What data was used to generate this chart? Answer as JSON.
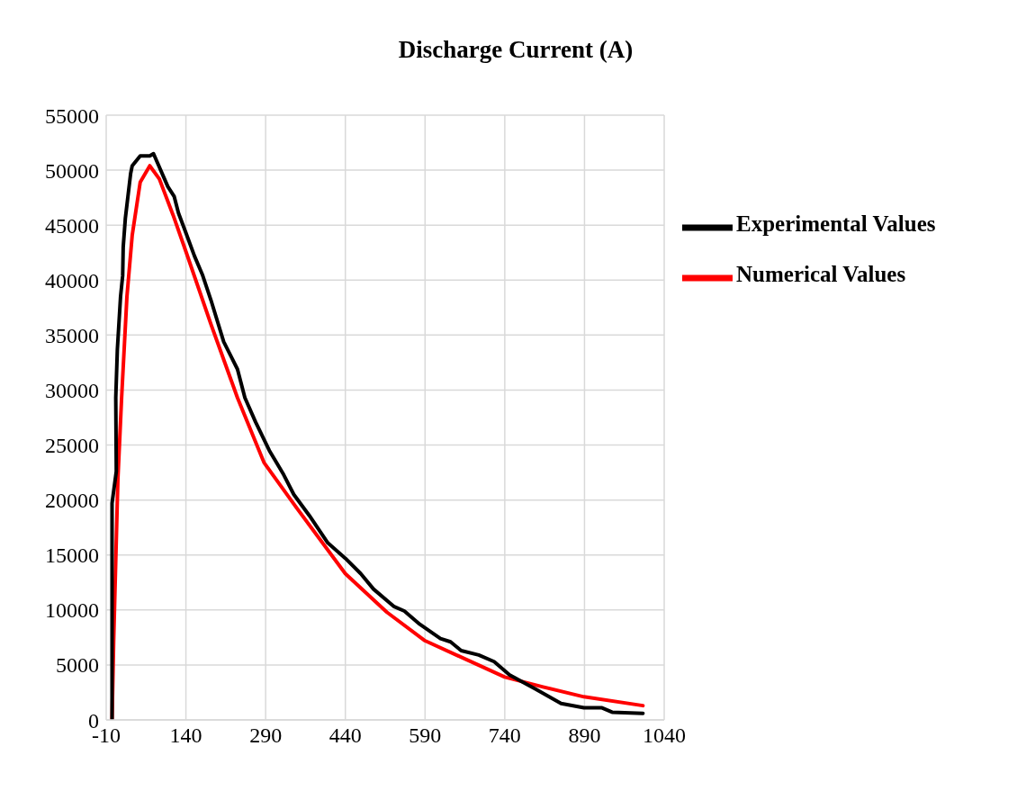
{
  "chart_data": {
    "type": "line",
    "title": "Discharge Current (A)",
    "xlim": [
      -10,
      1040
    ],
    "xticks": [
      -10,
      140,
      290,
      440,
      590,
      740,
      890,
      1040
    ],
    "ylim": [
      0,
      55000
    ],
    "yticks": [
      0,
      5000,
      10000,
      15000,
      20000,
      25000,
      30000,
      35000,
      40000,
      45000,
      50000,
      55000
    ],
    "grid": true,
    "legend": "top right",
    "marker": "none",
    "line_style": "solid",
    "series": [
      {
        "name": "Numerical Values",
        "color": "#ff0000",
        "x": [
          1,
          4,
          12,
          19,
          29,
          39,
          54,
          72,
          90,
          116,
          140,
          187,
          237,
          287,
          348,
          440,
          518,
          590,
          740,
          812,
          889,
          1000
        ],
        "values": [
          0,
          7100,
          21900,
          29300,
          38500,
          44100,
          48900,
          50400,
          49200,
          45900,
          42600,
          36000,
          29300,
          23400,
          19300,
          13300,
          9800,
          7200,
          3900,
          3000,
          2100,
          1300
        ]
      },
      {
        "name": "Experimental Values",
        "color": "#000000",
        "x": [
          1,
          1,
          9,
          8,
          11,
          17,
          21,
          22,
          26,
          36,
          39,
          54,
          72,
          79,
          106,
          118,
          126,
          140,
          156,
          171,
          187,
          211,
          237,
          251,
          271,
          297,
          324,
          343,
          372,
          407,
          440,
          469,
          493,
          532,
          551,
          580,
          619,
          638,
          658,
          691,
          720,
          749,
          798,
          846,
          889,
          923,
          942,
          1000
        ],
        "values": [
          100,
          19700,
          22600,
          29300,
          33700,
          38500,
          40400,
          43000,
          45600,
          49700,
          50400,
          51300,
          51300,
          51500,
          48500,
          47600,
          46100,
          44300,
          42200,
          40500,
          38200,
          34400,
          31900,
          29300,
          27100,
          24500,
          22300,
          20500,
          18600,
          16100,
          14700,
          13300,
          11900,
          10300,
          9900,
          8700,
          7400,
          7100,
          6300,
          5900,
          5300,
          4100,
          2800,
          1500,
          1100,
          1100,
          700,
          600
        ]
      }
    ]
  }
}
